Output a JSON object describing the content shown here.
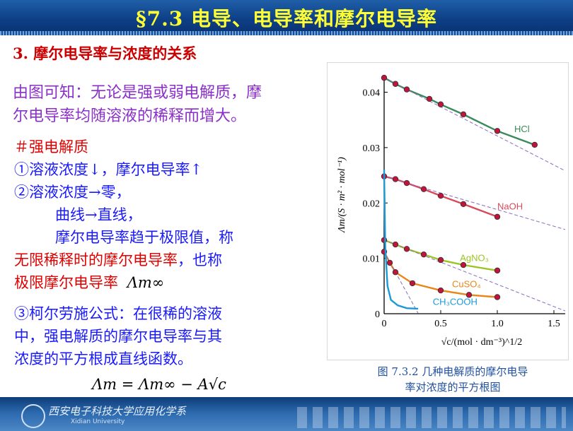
{
  "header": {
    "title": "§7.3  电导、电导率和摩尔电导率"
  },
  "section": {
    "heading": "3.  摩尔电导率与浓度的关系"
  },
  "intro": {
    "line1": "由图可知：无论是强或弱电解质，摩",
    "line2": "尔电导率均随溶液的稀释而增大。"
  },
  "strong": {
    "heading": "＃强电解质",
    "p1": "①溶液浓度↓，摩尔电导率↑",
    "p2a": "②溶液浓度→零，",
    "p2b": "曲线→直线，",
    "p2c": "摩尔电导率趋于极限值，称",
    "p2d_red": "无限稀释时的摩尔电导率",
    "p2d_blue": "，也称",
    "p2e_red": "极限摩尔电导率",
    "symbol": "Λm∞",
    "p3a": "③柯尔劳施公式：在很稀的溶液",
    "p3b": "中，强电解质的摩尔电导率与其",
    "p3c": "浓度的平方根成直线函数。",
    "formula": "Λm = Λm∞ − A√c"
  },
  "figure": {
    "caption_line1": "图 7.3.2  几种电解质的摩尔电导",
    "caption_line2": "率对浓度的平方根图"
  },
  "chart_data": {
    "type": "line",
    "xlabel": "√c/(mol · dm⁻³)^1/2",
    "ylabel": "Λm/(S · m² · mol⁻¹)",
    "xlim": [
      0,
      1.6
    ],
    "ylim": [
      0,
      0.043
    ],
    "xticks": [
      "0",
      "0.5",
      "1.0",
      "1.5"
    ],
    "yticks": [
      "0",
      "0.01",
      "0.02",
      "0.03",
      "0.04"
    ],
    "grid": false,
    "series": [
      {
        "name": "HCl",
        "color": "#3a8a5a",
        "x": [
          0,
          0.1,
          0.2,
          0.4,
          0.5,
          0.7,
          1.0,
          1.33
        ],
        "y": [
          0.0426,
          0.0415,
          0.0405,
          0.0388,
          0.0378,
          0.036,
          0.033,
          0.0305
        ]
      },
      {
        "name": "NaOH",
        "color": "#d84a5a",
        "x": [
          0,
          0.1,
          0.2,
          0.35,
          0.5,
          0.7,
          1.0
        ],
        "y": [
          0.0248,
          0.0243,
          0.0236,
          0.0225,
          0.0213,
          0.0198,
          0.0175
        ]
      },
      {
        "name": "AgNO3",
        "color": "#9bc520",
        "x": [
          0,
          0.1,
          0.2,
          0.35,
          0.5,
          0.7,
          1.0
        ],
        "y": [
          0.0133,
          0.0125,
          0.0117,
          0.0107,
          0.0097,
          0.0088,
          0.0078
        ]
      },
      {
        "name": "CuSO4",
        "color": "#e8861a",
        "x": [
          0,
          0.05,
          0.1,
          0.25,
          0.5,
          0.75,
          1.0
        ],
        "y": [
          0.0112,
          0.0092,
          0.0075,
          0.0055,
          0.0042,
          0.0034,
          0.003
        ]
      },
      {
        "name": "CH3COOH",
        "color": "#1a9ad8",
        "x": [
          0,
          0.01,
          0.03,
          0.06,
          0.12,
          0.2,
          0.3
        ],
        "y": [
          0.026,
          0.012,
          0.005,
          0.0025,
          0.0015,
          0.001,
          0.0009
        ]
      }
    ],
    "annotations": [
      "HCl",
      "NaOH",
      "AgNO₃",
      "CuSO₄",
      "CH₃COOH"
    ]
  },
  "footer": {
    "text": "西安电子科技大学应用化学系",
    "sub": "Xidian University"
  }
}
